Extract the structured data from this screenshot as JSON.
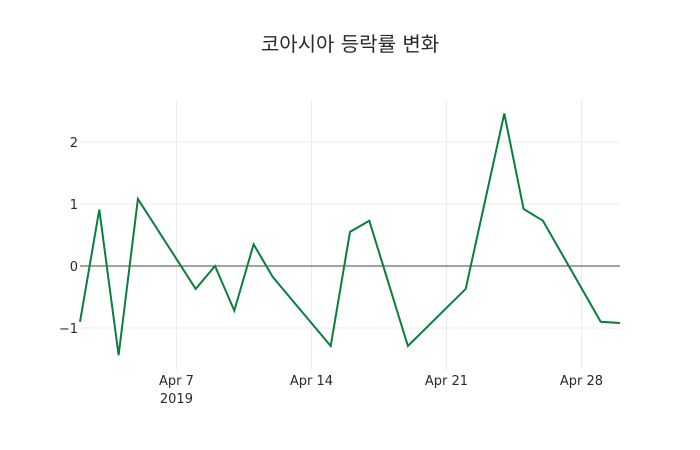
{
  "chart_data": {
    "type": "line",
    "title": "코아시아 등락률 변화",
    "xlabel": "",
    "ylabel": "",
    "x": [
      "2019-04-02",
      "2019-04-03",
      "2019-04-04",
      "2019-04-05",
      "2019-04-08",
      "2019-04-09",
      "2019-04-10",
      "2019-04-11",
      "2019-04-12",
      "2019-04-15",
      "2019-04-16",
      "2019-04-17",
      "2019-04-19",
      "2019-04-22",
      "2019-04-24",
      "2019-04-25",
      "2019-04-26",
      "2019-04-29",
      "2019-04-30"
    ],
    "series": [
      {
        "name": "등락률",
        "color": "#0a7e3c",
        "values": [
          -0.9,
          0.91,
          -1.44,
          1.08,
          -0.37,
          0.0,
          -0.72,
          0.35,
          -0.18,
          -1.29,
          0.55,
          0.73,
          -1.29,
          -0.37,
          2.46,
          0.92,
          0.73,
          -0.9,
          -0.92
        ]
      }
    ],
    "x_ticks": [
      {
        "date": "2019-04-07",
        "label": "Apr 7",
        "sublabel": "2019"
      },
      {
        "date": "2019-04-14",
        "label": "Apr 14",
        "sublabel": ""
      },
      {
        "date": "2019-04-21",
        "label": "Apr 21",
        "sublabel": ""
      },
      {
        "date": "2019-04-28",
        "label": "Apr 28",
        "sublabel": ""
      }
    ],
    "y_ticks": [
      2,
      1,
      0,
      -1
    ],
    "y_tick_labels": [
      "2",
      "1",
      "0",
      "−1"
    ],
    "ylim": [
      -1.6,
      2.7
    ],
    "xlim": [
      "2019-04-02",
      "2019-04-30"
    ],
    "grid": true,
    "legend": "none"
  }
}
